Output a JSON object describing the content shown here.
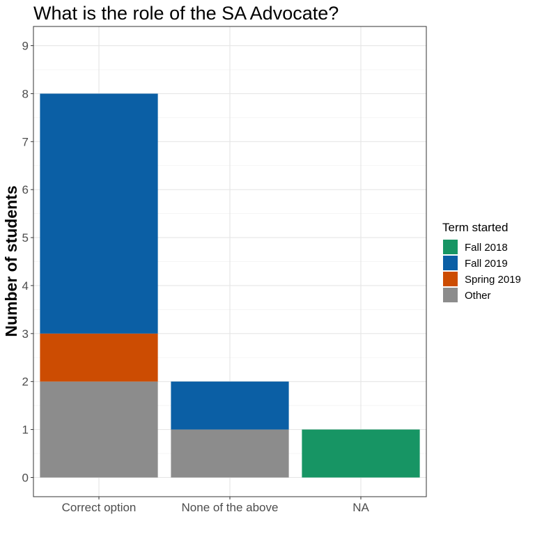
{
  "chart_data": {
    "type": "bar",
    "stacked": true,
    "title": "What is the role of the SA Advocate?",
    "xlabel": "",
    "ylabel": "Number of students",
    "categories": [
      "Correct option",
      "None of the above",
      "NA"
    ],
    "ylim": [
      -0.4,
      9.4
    ],
    "yticks": [
      "0",
      "1",
      "2",
      "3",
      "4",
      "5",
      "6",
      "7",
      "8",
      "9"
    ],
    "grid": true,
    "legend": {
      "title": "Term started",
      "placement": "right",
      "entries": [
        "Fall 2018",
        "Fall 2019",
        "Spring 2019",
        "Other"
      ]
    },
    "stack_order": [
      "Other",
      "Spring 2019",
      "Fall 2019",
      "Fall 2018"
    ],
    "series": [
      {
        "name": "Fall 2018",
        "color": "#179564",
        "values": [
          0,
          0,
          1
        ]
      },
      {
        "name": "Fall 2019",
        "color": "#0b5fa5",
        "values": [
          5,
          1,
          0
        ]
      },
      {
        "name": "Spring 2019",
        "color": "#cc4c02",
        "values": [
          1,
          0,
          0
        ]
      },
      {
        "name": "Other",
        "color": "#8c8c8c",
        "values": [
          2,
          1,
          0
        ]
      }
    ]
  }
}
